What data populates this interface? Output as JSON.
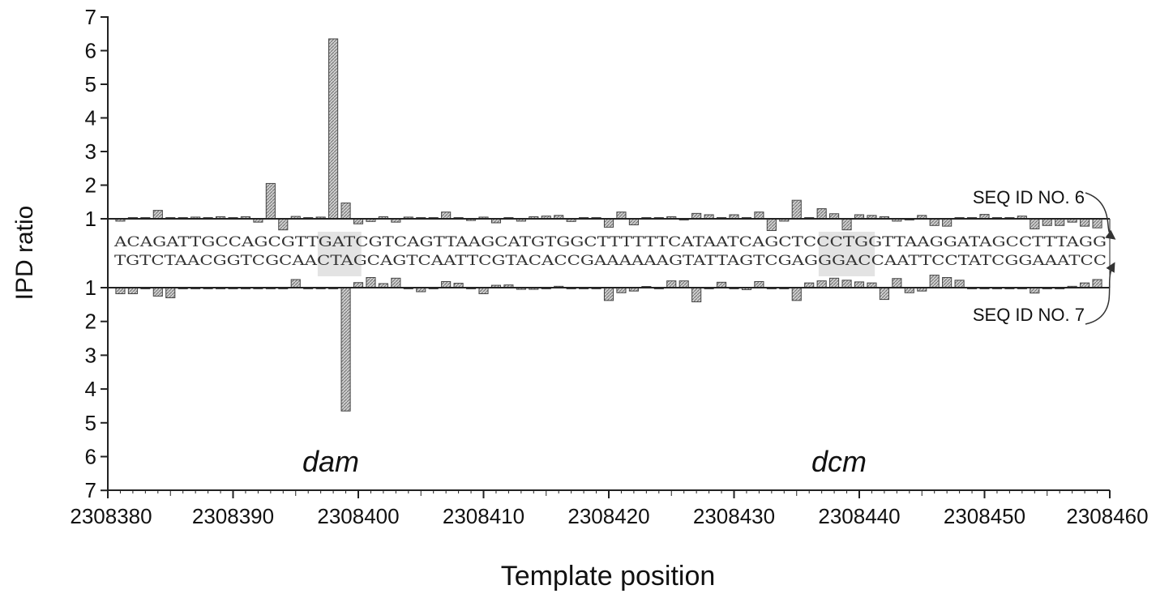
{
  "chart_data": {
    "type": "bar",
    "xlabel": "Template position",
    "ylabel": "IPD ratio",
    "xlim": [
      2308380,
      2308460
    ],
    "x_ticks": [
      2308380,
      2308390,
      2308400,
      2308410,
      2308420,
      2308430,
      2308440,
      2308450,
      2308460
    ],
    "x_tick_labels": [
      "2308380",
      "2308390",
      "2308400",
      "2308410",
      "2308420",
      "2308430",
      "2308440",
      "2308450",
      "2308460"
    ],
    "top_ylim": [
      1,
      7
    ],
    "bottom_ylim": [
      1,
      7
    ],
    "y_tick_labels_top": [
      "7",
      "6",
      "5",
      "4",
      "3",
      "2",
      "1"
    ],
    "y_tick_labels_bottom": [
      "1",
      "2",
      "3",
      "4",
      "5",
      "6",
      "7"
    ],
    "baseline": 1,
    "series": [
      {
        "name": "SEQ ID NO. 6",
        "x": [
          2308381,
          2308382,
          2308383,
          2308384,
          2308385,
          2308386,
          2308387,
          2308388,
          2308389,
          2308390,
          2308391,
          2308392,
          2308393,
          2308394,
          2308395,
          2308396,
          2308397,
          2308398,
          2308399,
          2308400,
          2308401,
          2308402,
          2308403,
          2308404,
          2308405,
          2308406,
          2308407,
          2308408,
          2308409,
          2308410,
          2308411,
          2308412,
          2308413,
          2308414,
          2308415,
          2308416,
          2308417,
          2308418,
          2308419,
          2308420,
          2308421,
          2308422,
          2308423,
          2308424,
          2308425,
          2308426,
          2308427,
          2308428,
          2308429,
          2308430,
          2308431,
          2308432,
          2308433,
          2308434,
          2308435,
          2308436,
          2308437,
          2308438,
          2308439,
          2308440,
          2308441,
          2308442,
          2308443,
          2308444,
          2308445,
          2308446,
          2308447,
          2308448,
          2308449,
          2308450,
          2308451,
          2308452,
          2308453,
          2308454,
          2308455,
          2308456,
          2308457,
          2308458,
          2308459
        ],
        "values": [
          0.93,
          1.0,
          1.0,
          1.25,
          1.0,
          1.0,
          1.05,
          1.0,
          1.06,
          1.0,
          1.06,
          0.9,
          2.05,
          0.67,
          1.07,
          1.0,
          1.05,
          6.35,
          1.47,
          0.85,
          0.92,
          1.06,
          0.9,
          1.05,
          1.0,
          1.0,
          1.2,
          1.0,
          0.95,
          1.05,
          0.88,
          1.0,
          0.93,
          1.06,
          1.08,
          1.1,
          0.92,
          1.0,
          1.0,
          0.75,
          1.2,
          0.82,
          1.0,
          1.0,
          1.06,
          0.97,
          1.16,
          1.12,
          1.0,
          1.12,
          1.0,
          1.2,
          0.65,
          0.93,
          1.55,
          1.0,
          1.3,
          1.15,
          0.67,
          1.12,
          1.1,
          1.06,
          0.93,
          0.97,
          1.1,
          0.8,
          0.78,
          1.0,
          1.0,
          1.13,
          1.0,
          1.0,
          1.08,
          0.7,
          0.8,
          0.8,
          0.9,
          0.78,
          0.73
        ],
        "strand_sequence": "ACAGATTGCCAGCGTTGATCGTCAGTTAAGCATGTGGCTTTTTTCATAATCAGCTCCCTGGTTAAGGATAGCCTTTAGG"
      },
      {
        "name": "SEQ ID NO. 7",
        "x": [
          2308381,
          2308382,
          2308383,
          2308384,
          2308385,
          2308386,
          2308387,
          2308388,
          2308389,
          2308390,
          2308391,
          2308392,
          2308393,
          2308394,
          2308395,
          2308396,
          2308397,
          2308398,
          2308399,
          2308400,
          2308401,
          2308402,
          2308403,
          2308404,
          2308405,
          2308406,
          2308407,
          2308408,
          2308409,
          2308410,
          2308411,
          2308412,
          2308413,
          2308414,
          2308415,
          2308416,
          2308417,
          2308418,
          2308419,
          2308420,
          2308421,
          2308422,
          2308423,
          2308424,
          2308425,
          2308426,
          2308427,
          2308428,
          2308429,
          2308430,
          2308431,
          2308432,
          2308433,
          2308434,
          2308435,
          2308436,
          2308437,
          2308438,
          2308439,
          2308440,
          2308441,
          2308442,
          2308443,
          2308444,
          2308445,
          2308446,
          2308447,
          2308448,
          2308449,
          2308450,
          2308451,
          2308452,
          2308453,
          2308454,
          2308455,
          2308456,
          2308457,
          2308458,
          2308459
        ],
        "values": [
          1.18,
          1.18,
          1.0,
          1.25,
          1.3,
          1.0,
          1.0,
          1.0,
          1.0,
          1.0,
          1.0,
          1.0,
          1.0,
          1.0,
          0.76,
          1.0,
          1.0,
          1.0,
          4.65,
          0.85,
          0.7,
          0.88,
          0.72,
          1.0,
          1.12,
          1.0,
          0.82,
          0.87,
          1.0,
          1.18,
          0.93,
          0.92,
          1.05,
          1.05,
          1.0,
          0.96,
          1.0,
          1.0,
          1.0,
          1.38,
          1.15,
          1.1,
          0.98,
          1.0,
          0.8,
          0.8,
          1.42,
          1.0,
          0.84,
          1.0,
          1.06,
          0.82,
          1.0,
          1.0,
          1.38,
          0.86,
          0.8,
          0.72,
          0.78,
          0.83,
          0.86,
          1.35,
          0.73,
          1.15,
          1.1,
          0.63,
          0.7,
          0.78,
          1.0,
          1.0,
          1.0,
          1.0,
          1.0,
          1.16,
          1.0,
          1.0,
          0.96,
          0.86,
          0.76
        ],
        "strand_sequence": "TGTCTAACGGTCGCAACTAGCAGTCAATTCGTACACCGAAAAAAGTATTAGTCGAGGGACCAATTCCTATCGGAAATCC"
      }
    ],
    "annotations": [
      "dam",
      "dcm"
    ],
    "highlight_regions": [
      {
        "start": 2308397,
        "end": 2308400
      },
      {
        "start": 2308437,
        "end": 2308441
      }
    ],
    "grid": false,
    "legend": "right"
  }
}
